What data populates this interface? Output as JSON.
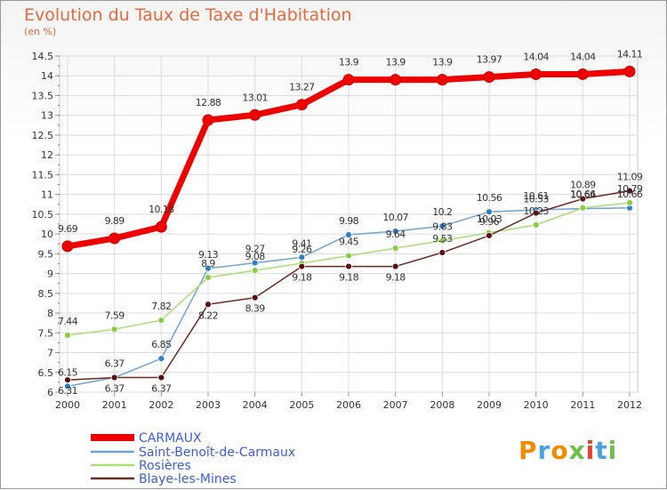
{
  "title": "Evolution du Taux de Taxe d'Habitation",
  "unit": "(en %)",
  "logo": "Proxiti",
  "chart_data": {
    "type": "line",
    "x": [
      "2000",
      "2001",
      "2002",
      "2003",
      "2004",
      "2005",
      "2006",
      "2007",
      "2008",
      "2009",
      "2010",
      "2011",
      "2012"
    ],
    "ylim": [
      6,
      14.5
    ],
    "yticks": [
      "6",
      "6.5",
      "7",
      "7.5",
      "8",
      "8.5",
      "9",
      "9.5",
      "10",
      "10.5",
      "11",
      "11.5",
      "12",
      "12.5",
      "13",
      "13.5",
      "14",
      "14.5"
    ],
    "grid": true,
    "legend_position": "bottom-left",
    "series": [
      {
        "name": "CARMAUX",
        "color": "#ee0000",
        "width": 7,
        "values": [
          9.69,
          9.89,
          10.18,
          12.88,
          13.01,
          13.27,
          13.9,
          13.9,
          13.9,
          13.97,
          14.04,
          14.04,
          14.11
        ],
        "labels": [
          "9.69",
          "9.89",
          "10.18",
          "12.88",
          "13.01",
          "13.27",
          "13.9",
          "13.9",
          "13.9",
          "13.97",
          "14.04",
          "14.04",
          "14.11"
        ]
      },
      {
        "name": "Saint-Benoît-de-Carmaux",
        "color": "#6fa3d0",
        "dot": "#2f7fc8",
        "width": 1.5,
        "values": [
          6.15,
          6.37,
          6.85,
          9.13,
          9.27,
          9.41,
          9.98,
          10.07,
          10.2,
          10.56,
          10.61,
          10.64,
          10.66
        ],
        "labels": [
          "6.15",
          "6.37",
          "6.85",
          "9.13",
          "9.27",
          "9.41",
          "9.98",
          "10.07",
          "10.2",
          "10.56",
          "10.61",
          "10.64",
          "10.66"
        ]
      },
      {
        "name": "Rosières",
        "color": "#aadd77",
        "dot": "#88cc44",
        "width": 1.5,
        "values": [
          7.44,
          7.59,
          7.82,
          8.9,
          9.08,
          9.26,
          9.45,
          9.64,
          9.83,
          10.03,
          10.23,
          10.66,
          10.79
        ],
        "labels": [
          "7.44",
          "7.59",
          "7.82",
          "8.9",
          "9.08",
          "9.26",
          "9.45",
          "9.64",
          "9.83",
          "10.03",
          "10.23",
          "10.66",
          "10.79"
        ]
      },
      {
        "name": "Blaye-les-Mines",
        "color": "#6b2a22",
        "dot": "#5a1010",
        "width": 1.5,
        "values": [
          6.31,
          6.37,
          6.37,
          8.22,
          8.39,
          9.18,
          9.18,
          9.18,
          9.53,
          9.96,
          10.53,
          10.89,
          11.09
        ],
        "labels": [
          "6.31",
          "6.37",
          "6.37",
          "8.22",
          "8.39",
          "9.18",
          "9.18",
          "9.18",
          "9.53",
          "9.96",
          "10.53",
          "10.89",
          "11.09"
        ]
      }
    ]
  }
}
